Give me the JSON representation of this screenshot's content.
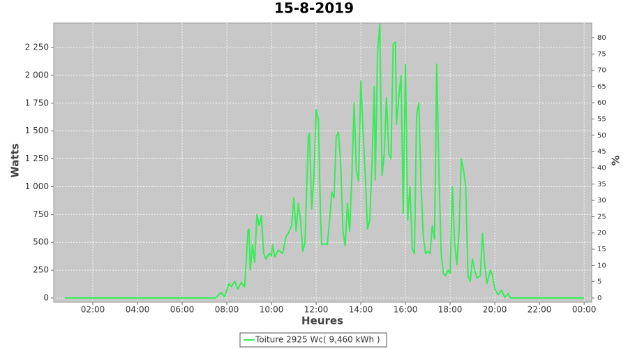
{
  "chart_data": {
    "type": "line",
    "title": "15-8-2019",
    "x_label": "Heures",
    "y_label": "Watts",
    "y2_label": "%",
    "xlim": [
      0.25,
      24.34
    ],
    "xticks": [
      {
        "value": 2,
        "label": "02:00"
      },
      {
        "value": 4,
        "label": "04:00"
      },
      {
        "value": 6,
        "label": "06:00"
      },
      {
        "value": 8,
        "label": "08:00"
      },
      {
        "value": 10,
        "label": "10:00"
      },
      {
        "value": 12,
        "label": "12:00"
      },
      {
        "value": 14,
        "label": "14:00"
      },
      {
        "value": 16,
        "label": "16:00"
      },
      {
        "value": 18,
        "label": "18:00"
      },
      {
        "value": 20,
        "label": "20:00"
      },
      {
        "value": 22,
        "label": "22:00"
      },
      {
        "value": 24,
        "label": "00:00"
      }
    ],
    "ylim": [
      -38,
      2470
    ],
    "yticks": [
      0,
      250,
      500,
      750,
      {
        "value": 1000,
        "label": "1 000"
      },
      {
        "value": 1250,
        "label": "1 250"
      },
      {
        "value": 1500,
        "label": "1 500"
      },
      {
        "value": 1750,
        "label": "1 750"
      },
      {
        "value": 2000,
        "label": "2 000"
      },
      {
        "value": 2250,
        "label": "2 250"
      }
    ],
    "y2lim": [
      -1.3,
      84.5
    ],
    "y2ticks": [
      0,
      5,
      10,
      15,
      20,
      25,
      30,
      35,
      40,
      45,
      50,
      55,
      60,
      65,
      70,
      75,
      80
    ],
    "grid": true,
    "legend": "bottom",
    "x": [
      0.75,
      7.5,
      7.75,
      7.9,
      8.1,
      8.2,
      8.35,
      8.5,
      8.65,
      8.8,
      8.95,
      9.0,
      9.05,
      9.15,
      9.25,
      9.35,
      9.45,
      9.55,
      9.65,
      9.75,
      9.9,
      10.0,
      10.05,
      10.15,
      10.3,
      10.5,
      10.65,
      10.8,
      10.9,
      11.0,
      11.1,
      11.2,
      11.3,
      11.4,
      11.5,
      11.65,
      11.7,
      11.8,
      11.9,
      12.0,
      12.1,
      12.2,
      12.25,
      12.4,
      12.5,
      12.6,
      12.7,
      12.8,
      12.9,
      13.0,
      13.1,
      13.2,
      13.3,
      13.4,
      13.5,
      13.6,
      13.7,
      13.8,
      13.9,
      14.0,
      14.1,
      14.2,
      14.3,
      14.4,
      14.5,
      14.6,
      14.65,
      14.75,
      14.85,
      14.95,
      15.05,
      15.15,
      15.25,
      15.35,
      15.45,
      15.55,
      15.6,
      15.7,
      15.8,
      15.9,
      16.0,
      16.1,
      16.2,
      16.3,
      16.4,
      16.5,
      16.6,
      16.7,
      16.8,
      16.9,
      17.0,
      17.1,
      17.2,
      17.3,
      17.4,
      17.5,
      17.6,
      17.7,
      17.8,
      17.9,
      18.0,
      18.1,
      18.2,
      18.3,
      18.4,
      18.5,
      18.6,
      18.7,
      18.8,
      18.9,
      19.0,
      19.1,
      19.2,
      19.35,
      19.45,
      19.55,
      19.65,
      19.8,
      19.9,
      20.0,
      20.15,
      20.3,
      20.45,
      20.6,
      20.7,
      24.0
    ],
    "series": [
      {
        "name": "Toiture 2925 Wc( 9,460 kWh )",
        "color": "#33ee55",
        "values": [
          0,
          0,
          50,
          10,
          130,
          100,
          150,
          80,
          140,
          100,
          600,
          620,
          250,
          480,
          320,
          750,
          650,
          740,
          400,
          350,
          400,
          380,
          480,
          370,
          430,
          400,
          550,
          600,
          650,
          900,
          600,
          850,
          700,
          420,
          500,
          1450,
          1480,
          800,
          1100,
          1690,
          1600,
          700,
          480,
          490,
          480,
          700,
          950,
          900,
          1450,
          1490,
          1200,
          600,
          470,
          850,
          600,
          1100,
          1750,
          1150,
          1050,
          1950,
          1500,
          1100,
          620,
          700,
          1200,
          1900,
          1060,
          2200,
          2460,
          1100,
          1300,
          1800,
          1300,
          1250,
          2280,
          2300,
          1560,
          1800,
          2000,
          760,
          2100,
          700,
          1000,
          450,
          400,
          1650,
          1750,
          1000,
          550,
          400,
          420,
          400,
          650,
          530,
          2100,
          1100,
          400,
          220,
          200,
          250,
          220,
          1000,
          500,
          300,
          600,
          1250,
          1150,
          1000,
          200,
          150,
          350,
          250,
          180,
          200,
          580,
          300,
          130,
          250,
          200,
          80,
          30,
          70,
          5,
          40,
          0,
          0
        ]
      }
    ]
  }
}
